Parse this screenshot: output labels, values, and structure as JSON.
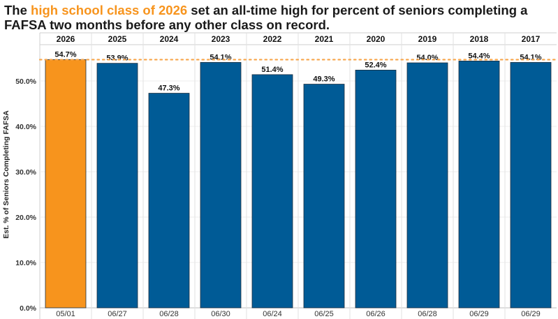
{
  "title": {
    "part1": "The ",
    "highlight": "high school class of 2026",
    "part2": " set an all-time high for percent of seniors completing a FAFSA two months before any other class on record."
  },
  "colors": {
    "highlight": "#f7941d",
    "bar_primary": "#005b96",
    "bar_highlight": "#f7941d",
    "reference_line": "#f7a54a"
  },
  "chart_data": {
    "type": "bar",
    "title": "The high school class of 2026 set an all-time high for percent of seniors completing a FAFSA two months before any other class on record.",
    "ylabel": "Est. % of Seniors Completing FAFSA",
    "xlabel": "",
    "ylim": [
      0,
      58
    ],
    "yticks": [
      0,
      10,
      20,
      30,
      40,
      50
    ],
    "ytick_labels": [
      "0.0%",
      "10.0%",
      "20.0%",
      "30.0%",
      "40.0%",
      "50.0%"
    ],
    "categories": [
      "2026",
      "2025",
      "2024",
      "2023",
      "2022",
      "2021",
      "2020",
      "2019",
      "2018",
      "2017"
    ],
    "dates": [
      "05/01",
      "06/27",
      "06/28",
      "06/30",
      "06/24",
      "06/25",
      "06/26",
      "06/28",
      "06/29",
      "06/29"
    ],
    "values": [
      54.7,
      53.9,
      47.3,
      54.1,
      51.4,
      49.3,
      52.4,
      54.0,
      54.4,
      54.1
    ],
    "value_labels": [
      "54.7%",
      "53.9%",
      "47.3%",
      "54.1%",
      "51.4%",
      "49.3%",
      "52.4%",
      "54.0%",
      "54.4%",
      "54.1%"
    ],
    "highlighted_category": "2026",
    "reference_line": 54.7,
    "grid": true
  }
}
